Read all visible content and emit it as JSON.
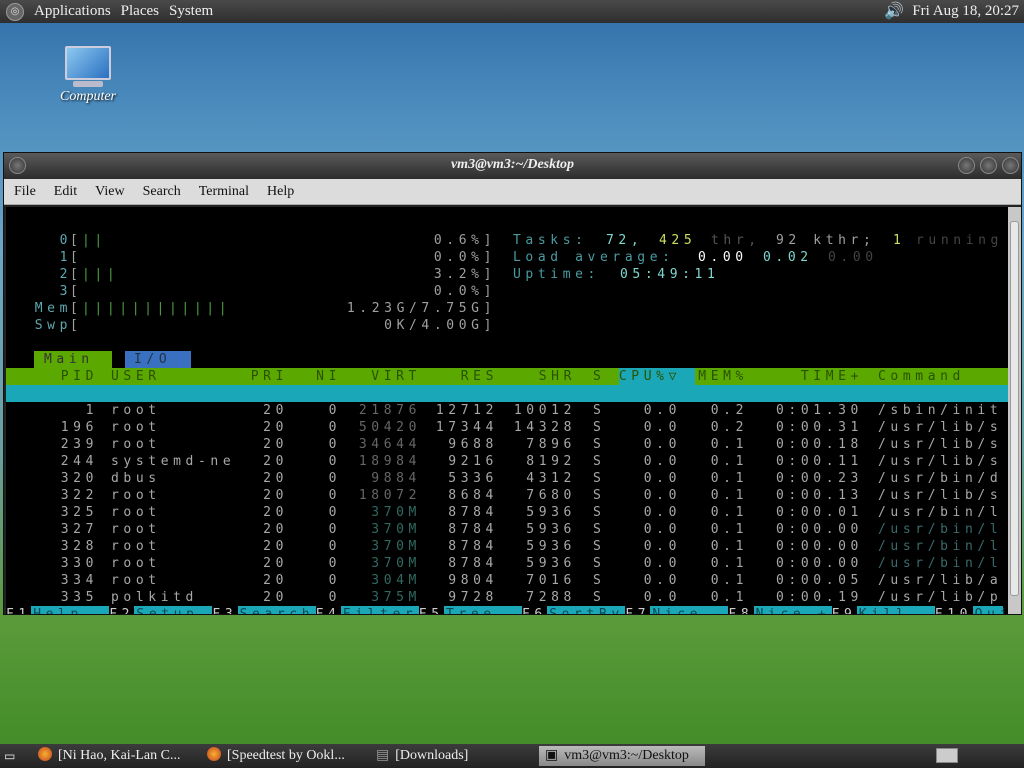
{
  "top_panel": {
    "menus": [
      "Applications",
      "Places",
      "System"
    ],
    "clock": "Fri Aug 18, 20:27"
  },
  "desktop": {
    "icon_label": "Computer"
  },
  "window": {
    "title": "vm3@vm3:~/Desktop",
    "menu": [
      "File",
      "Edit",
      "View",
      "Search",
      "Terminal",
      "Help"
    ]
  },
  "htop": {
    "meters": [
      {
        "label": "0",
        "bar": "||",
        "value": "0.6%]"
      },
      {
        "label": "1",
        "bar": "",
        "value": "0.0%]"
      },
      {
        "label": "2",
        "bar": "|||",
        "value": "3.2%]"
      },
      {
        "label": "3",
        "bar": "",
        "value": "0.0%]"
      },
      {
        "label": "Mem",
        "bar": "||||||||||||",
        "value": "1.23G/7.75G]"
      },
      {
        "label": "Swp",
        "bar": "",
        "value": "0K/4.00G]"
      }
    ],
    "tasks": {
      "label": "Tasks:",
      "procs": "72,",
      "thr": "425",
      "thr_label": "thr,",
      "kthr": "92 kthr;",
      "running": "1",
      "running_label": "running"
    },
    "load": {
      "label": "Load average:",
      "one": "0.00",
      "five": "0.02",
      "fifteen": "0.00"
    },
    "uptime": {
      "label": "Uptime:",
      "value": "05:49:11"
    },
    "tabs": [
      "Main",
      "I/O"
    ],
    "columns": [
      "PID",
      "USER",
      "PRI",
      "NI",
      "VIRT",
      "RES",
      "SHR",
      "S",
      "CPU%▽",
      "MEM%",
      "TIME+",
      "Command"
    ],
    "rows": [
      [
        "1",
        "root",
        "20",
        "0",
        "21876",
        "12712",
        "10012",
        "S",
        "0.0",
        "0.2",
        "0:01.30",
        "/sbin/init"
      ],
      [
        "196",
        "root",
        "20",
        "0",
        "50420",
        "17344",
        "14328",
        "S",
        "0.0",
        "0.2",
        "0:00.31",
        "/usr/lib/s"
      ],
      [
        "239",
        "root",
        "20",
        "0",
        "34644",
        "9688",
        "7896",
        "S",
        "0.0",
        "0.1",
        "0:00.18",
        "/usr/lib/s"
      ],
      [
        "244",
        "systemd-ne",
        "20",
        "0",
        "18984",
        "9216",
        "8192",
        "S",
        "0.0",
        "0.1",
        "0:00.11",
        "/usr/lib/s"
      ],
      [
        "320",
        "dbus",
        "20",
        "0",
        "9884",
        "5336",
        "4312",
        "S",
        "0.0",
        "0.1",
        "0:00.23",
        "/usr/bin/d"
      ],
      [
        "322",
        "root",
        "20",
        "0",
        "18072",
        "8684",
        "7680",
        "S",
        "0.0",
        "0.1",
        "0:00.13",
        "/usr/lib/s"
      ],
      [
        "325",
        "root",
        "20",
        "0",
        "370M",
        "8784",
        "5936",
        "S",
        "0.0",
        "0.1",
        "0:00.01",
        "/usr/bin/l"
      ],
      [
        "327",
        "root",
        "20",
        "0",
        "370M",
        "8784",
        "5936",
        "S",
        "0.0",
        "0.1",
        "0:00.00",
        "/usr/bin/l"
      ],
      [
        "328",
        "root",
        "20",
        "0",
        "370M",
        "8784",
        "5936",
        "S",
        "0.0",
        "0.1",
        "0:00.00",
        "/usr/bin/l"
      ],
      [
        "330",
        "root",
        "20",
        "0",
        "370M",
        "8784",
        "5936",
        "S",
        "0.0",
        "0.1",
        "0:00.00",
        "/usr/bin/l"
      ],
      [
        "334",
        "root",
        "20",
        "0",
        "304M",
        "9804",
        "7016",
        "S",
        "0.0",
        "0.1",
        "0:00.05",
        "/usr/lib/a"
      ],
      [
        "335",
        "polkitd",
        "20",
        "0",
        "375M",
        "9728",
        "7288",
        "S",
        "0.0",
        "0.1",
        "0:00.19",
        "/usr/lib/p"
      ]
    ],
    "footer": [
      [
        "F1",
        "Help"
      ],
      [
        "F2",
        "Setup"
      ],
      [
        "F3",
        "Search"
      ],
      [
        "F4",
        "Filter"
      ],
      [
        "F5",
        "Tree"
      ],
      [
        "F6",
        "SortBy"
      ],
      [
        "F7",
        "Nice -"
      ],
      [
        "F8",
        "Nice +"
      ],
      [
        "F9",
        "Kill"
      ],
      [
        "F10",
        "Quit"
      ]
    ],
    "colors": {
      "green": "#5aa800",
      "cyan": "#1aa8b8",
      "blue": "#3a70c0",
      "cyan_text": "#7fd8d0",
      "green_text": "#c8e060"
    }
  },
  "taskbar": {
    "items": [
      "[Ni Hao, Kai-Lan C...",
      "[Speedtest by Ookl...",
      "[Downloads]",
      "vm3@vm3:~/Desktop"
    ]
  }
}
